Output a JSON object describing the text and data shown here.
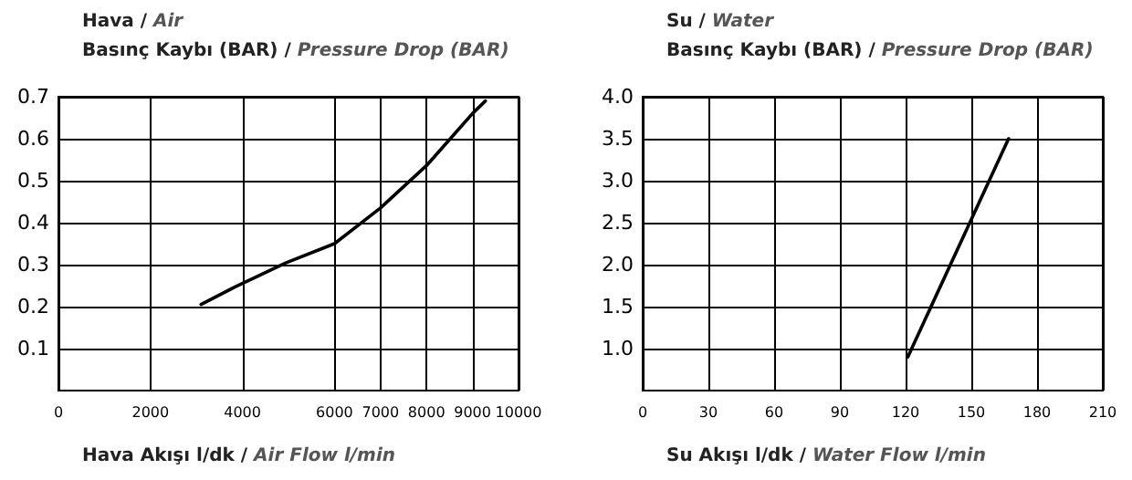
{
  "chart_data": [
    {
      "type": "line",
      "title": "Hava / Air",
      "ylabel": "Basınç Kaybı (BAR) / Pressure Drop (BAR)",
      "xlabel": "Hava Akışı l/dk / Air Flow l/min",
      "x": [
        3100,
        3820,
        4940,
        6000,
        7000,
        8000,
        9000,
        9280
      ],
      "values": [
        0.205,
        0.246,
        0.304,
        0.35,
        0.435,
        0.536,
        0.66,
        0.69
      ],
      "color": "#000000",
      "xlim": [
        0,
        10000
      ],
      "xticks": [
        0,
        2000,
        4000,
        6000,
        7000,
        8000,
        9000,
        10000
      ],
      "ylim": [
        0,
        0.7
      ],
      "yticks": [
        0.1,
        0.2,
        0.3,
        0.4,
        0.5,
        0.6,
        0.7
      ],
      "grid": true,
      "marker": "none",
      "line_style": "solid"
    },
    {
      "type": "line",
      "title": "Su / Water",
      "ylabel": "Basınç Kaybı (BAR) / Pressure Drop (BAR)",
      "xlabel": "Su Akışı l/dk / Water Flow l/min",
      "x": [
        121,
        167
      ],
      "values": [
        0.9,
        3.5
      ],
      "color": "#000000",
      "xlim": [
        0,
        210
      ],
      "xticks": [
        0,
        30,
        60,
        90,
        120,
        150,
        180,
        210
      ],
      "ylim": [
        0.5,
        4.0
      ],
      "yticks": [
        {
          "value": 1,
          "label": "1.0"
        },
        {
          "value": 1.5,
          "label": "1.5"
        },
        {
          "value": 2,
          "label": "2.0"
        },
        {
          "value": 2.5,
          "label": "2.5"
        },
        {
          "value": 3,
          "label": "3.0"
        },
        {
          "value": 3.5,
          "label": "3.5"
        },
        {
          "value": 4,
          "label": "4.0"
        }
      ],
      "grid": true,
      "marker": "none",
      "line_style": "solid"
    }
  ]
}
